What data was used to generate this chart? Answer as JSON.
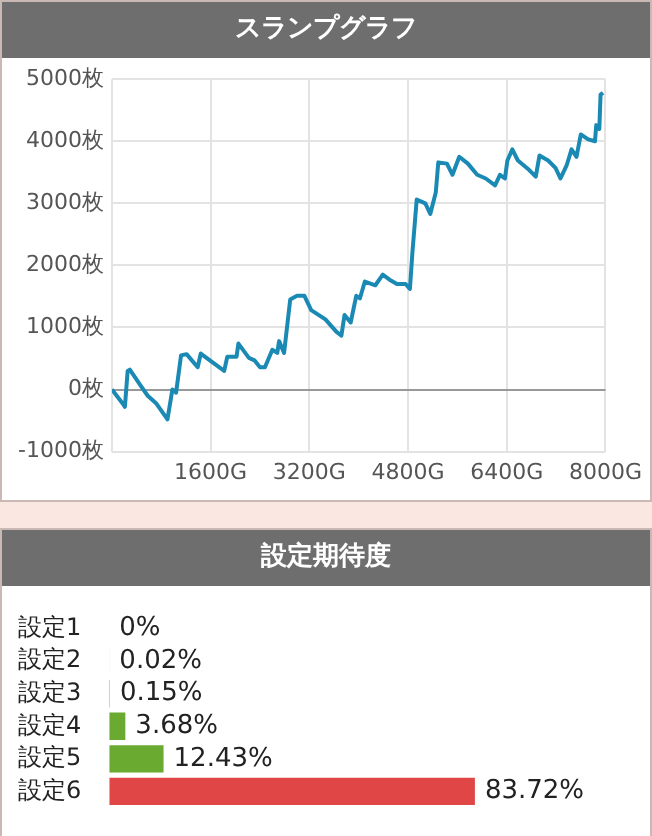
{
  "chart_data": [
    {
      "type": "line",
      "title": "スランプグラフ",
      "x": [
        0,
        170,
        210,
        255,
        290,
        460,
        580,
        715,
        900,
        980,
        1040,
        1120,
        1210,
        1390,
        1440,
        1670,
        1820,
        1870,
        2020,
        2050,
        2220,
        2310,
        2400,
        2480,
        2600,
        2680,
        2710,
        2790,
        2890,
        3000,
        3120,
        3230,
        3460,
        3640,
        3720,
        3770,
        3870,
        3960,
        4020,
        4100,
        4270,
        4390,
        4500,
        4620,
        4760,
        4830,
        4870,
        4940,
        5080,
        5160,
        5250,
        5290,
        5430,
        5520,
        5630,
        5770,
        5920,
        6060,
        6210,
        6290,
        6370,
        6410,
        6490,
        6580,
        6760,
        6870,
        6930,
        7070,
        7190,
        7270,
        7370,
        7450,
        7530,
        7600,
        7720,
        7830,
        7850,
        7900,
        7920,
        7960
      ],
      "series": [
        {
          "color": "#1a8ab5",
          "values": [
            0,
            -220,
            -280,
            300,
            320,
            70,
            -100,
            -220,
            -480,
            0,
            -50,
            550,
            570,
            360,
            580,
            410,
            300,
            530,
            530,
            740,
            510,
            470,
            360,
            360,
            640,
            590,
            780,
            590,
            1450,
            1510,
            1510,
            1280,
            1130,
            930,
            870,
            1200,
            1080,
            1510,
            1470,
            1740,
            1680,
            1850,
            1770,
            1700,
            1700,
            1620,
            2200,
            3060,
            3000,
            2830,
            3180,
            3660,
            3640,
            3460,
            3750,
            3640,
            3460,
            3400,
            3290,
            3460,
            3400,
            3690,
            3870,
            3690,
            3540,
            3430,
            3770,
            3690,
            3570,
            3400,
            3610,
            3870,
            3750,
            4110,
            4030,
            4000,
            4260,
            4200,
            4750,
            4780
          ]
        }
      ],
      "xlim": [
        0,
        8000
      ],
      "xticks": [
        {
          "value": 0,
          "label": null
        },
        {
          "value": 1600,
          "label": "1600G"
        },
        {
          "value": 3200,
          "label": "3200G"
        },
        {
          "value": 4800,
          "label": "4800G"
        },
        {
          "value": 6400,
          "label": "6400G"
        },
        {
          "value": 8000,
          "label": "8000G"
        }
      ],
      "ylim": [
        -1000,
        5000
      ],
      "yticks": [
        {
          "value": -1000,
          "label": "-1000枚"
        },
        {
          "value": 0,
          "label": "0枚"
        },
        {
          "value": 1000,
          "label": "1000枚"
        },
        {
          "value": 2000,
          "label": "2000枚"
        },
        {
          "value": 3000,
          "label": "3000枚"
        },
        {
          "value": 4000,
          "label": "4000枚"
        },
        {
          "value": 5000,
          "label": "5000枚"
        }
      ],
      "grid": true,
      "marker": "none",
      "line_style": "solid"
    },
    {
      "type": "bar",
      "orientation": "horizontal",
      "title": "設定期待度",
      "categories": [
        "設定1",
        "設定2",
        "設定3",
        "設定4",
        "設定5",
        "設定6"
      ],
      "values": [
        0,
        0.02,
        0.15,
        3.68,
        12.43,
        83.72
      ],
      "colors": [
        "#7dbb3c",
        "#7dbb3c",
        "#7dbb3c",
        "#6aaa30",
        "#6aaa30",
        "#e04646"
      ],
      "value_labels": [
        "0%",
        "0.02%",
        "0.15%",
        "3.68%",
        "12.43%",
        "83.72%"
      ],
      "tick_labels": "y",
      "grid": false
    }
  ]
}
